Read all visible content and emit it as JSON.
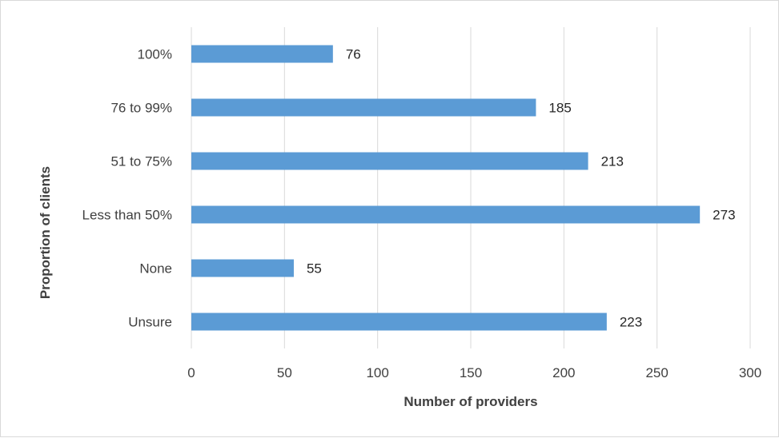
{
  "chart_data": {
    "type": "bar",
    "orientation": "horizontal",
    "title": "",
    "xlabel": "Number of providers",
    "ylabel": "Proportion of clients",
    "categories": [
      "100%",
      "76 to 99%",
      "51 to 75%",
      "Less than 50%",
      "None",
      "Unsure"
    ],
    "values": [
      76,
      185,
      213,
      273,
      55,
      223
    ],
    "xlim": [
      0,
      300
    ],
    "xticks": [
      "0",
      "50",
      "100",
      "150",
      "200",
      "250",
      "300"
    ],
    "grid": "vertical",
    "legend": "none",
    "bar_color": "#5b9bd5"
  }
}
